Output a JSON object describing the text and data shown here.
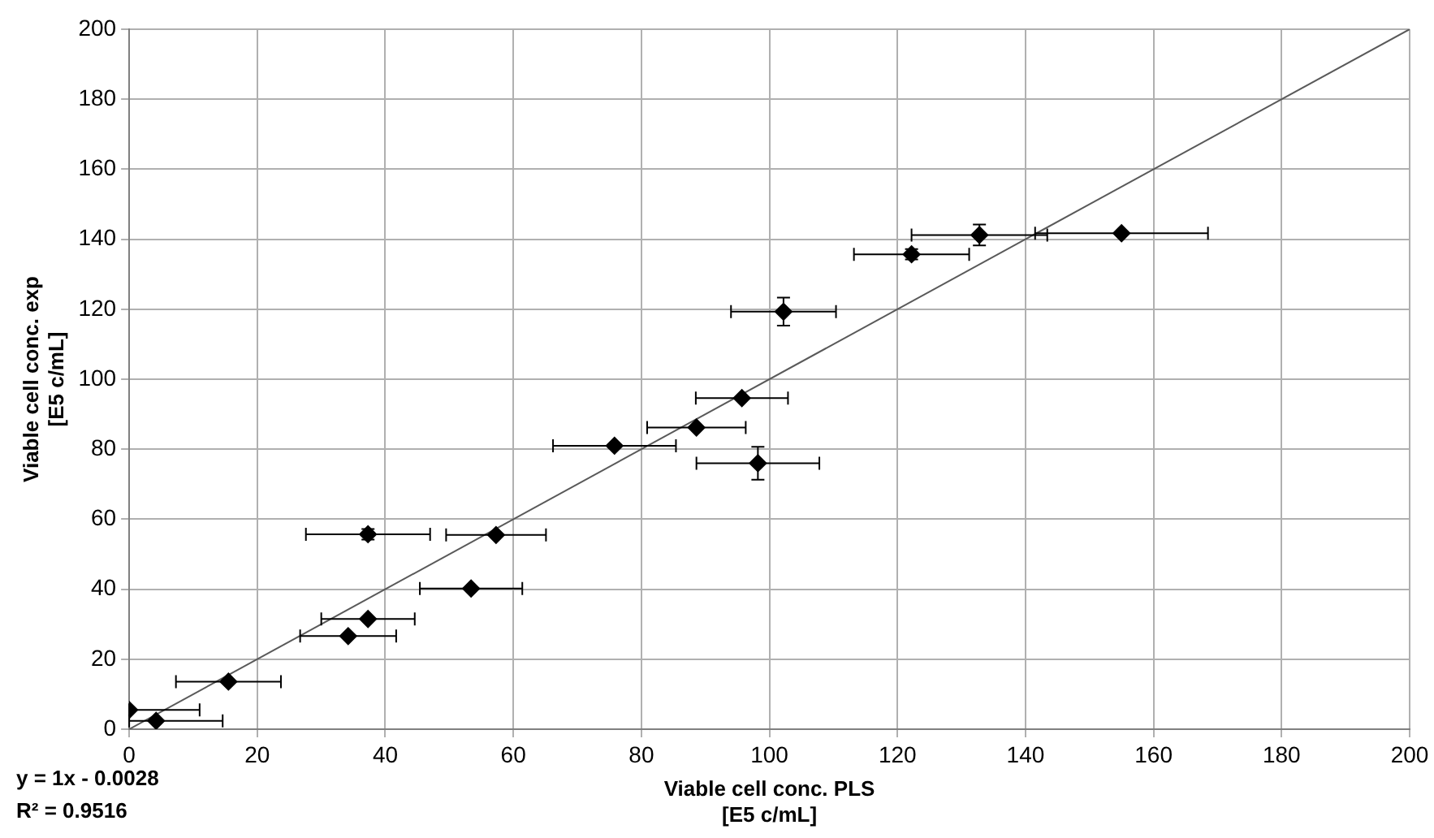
{
  "chart_data": {
    "type": "scatter",
    "xlabel": "Viable cell conc. PLS\n[E5 c/mL]",
    "ylabel": "Viable cell conc. exp\n[E5 c/mL]",
    "xlim": [
      0,
      200
    ],
    "ylim": [
      0,
      200
    ],
    "xticks": [
      0,
      20,
      40,
      60,
      80,
      100,
      120,
      140,
      160,
      180,
      200
    ],
    "yticks": [
      0,
      20,
      40,
      60,
      80,
      100,
      120,
      140,
      160,
      180,
      200
    ],
    "grid": true,
    "legend": false,
    "marker": "diamond",
    "annotations": [
      "y = 1x - 0.0028",
      "R² = 0.9516"
    ],
    "series": [
      {
        "color": "#000000",
        "x": [
          0,
          4.2,
          15.5,
          34.2,
          37.3,
          37.3,
          57.3,
          53.4,
          75.8,
          88.6,
          95.7,
          98.2,
          102.2,
          122.2,
          132.8,
          155
        ],
        "values": [
          5.5,
          2.4,
          13.6,
          26.6,
          31.5,
          55.7,
          55.5,
          40.2,
          81,
          86.2,
          94.6,
          76,
          119.3,
          135.7,
          141.2,
          141.7
        ],
        "xerrors": [
          [
            0,
            11
          ],
          [
            0,
            14.6
          ],
          8.2,
          7.5,
          7.3,
          9.7,
          7.8,
          8,
          9.6,
          7.7,
          7.2,
          9.6,
          8.2,
          9,
          10.6,
          13.5
        ],
        "errors": [
          null,
          null,
          null,
          null,
          null,
          1.5,
          null,
          null,
          null,
          null,
          null,
          4.7,
          4,
          1.5,
          3,
          null
        ]
      },
      {
        "type": "line",
        "marker": "none",
        "color": "#595959",
        "x": [
          0,
          200
        ],
        "values": [
          0,
          200
        ]
      }
    ]
  }
}
